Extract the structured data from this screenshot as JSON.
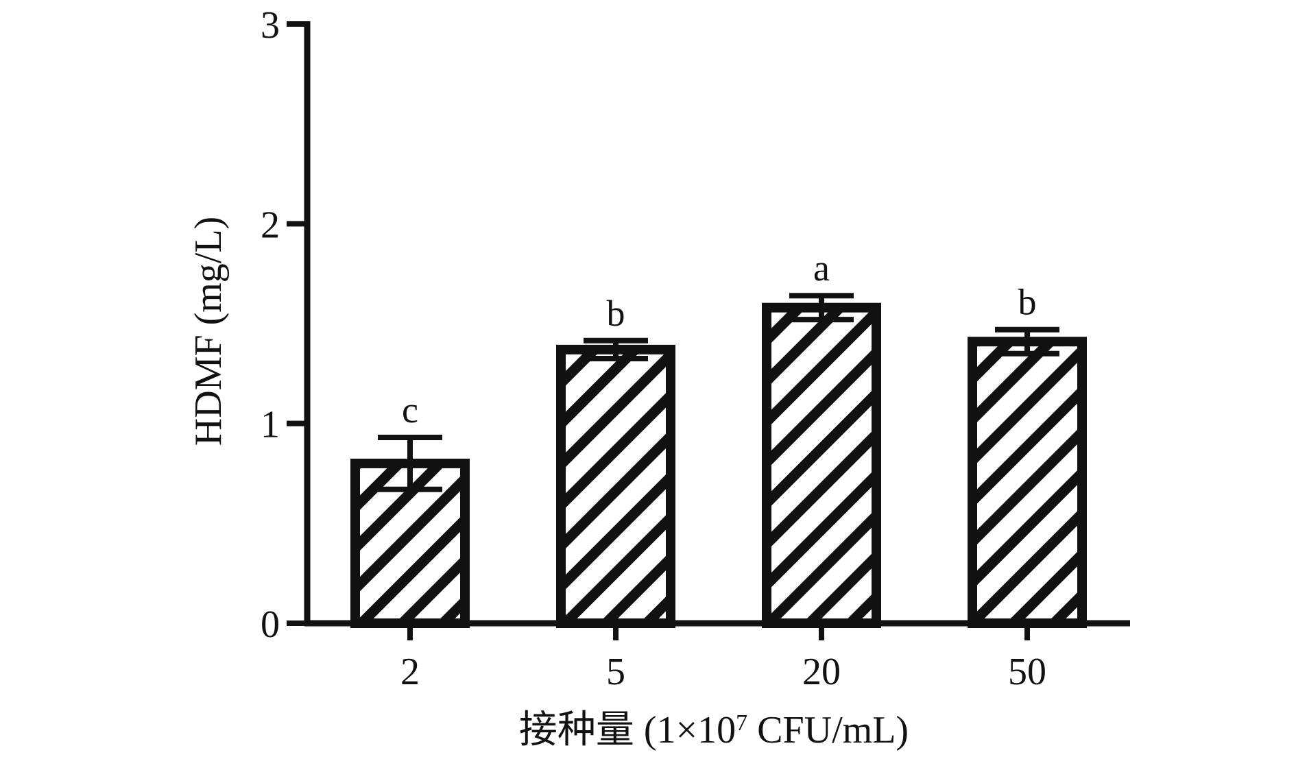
{
  "chart_data": {
    "type": "bar",
    "categories": [
      "2",
      "5",
      "20",
      "50"
    ],
    "values": [
      0.8,
      1.37,
      1.58,
      1.41
    ],
    "errors": [
      0.13,
      0.045,
      0.06,
      0.06
    ],
    "significance": [
      "c",
      "b",
      "a",
      "b"
    ],
    "title": "",
    "xlabel": "接种量 (1×10⁷ CFU/mL)",
    "ylabel": "HDMF (mg/L)",
    "ylim": [
      0,
      3
    ],
    "yticks": [
      0,
      1,
      2,
      3
    ],
    "ytick_labels": [
      "0",
      "1",
      "2",
      "3"
    ],
    "grid": false,
    "bar_fill": "diagonal-hatch",
    "colors": {
      "bar_outline": "#111111",
      "hatch": "#111111",
      "background": "#ffffff"
    }
  }
}
